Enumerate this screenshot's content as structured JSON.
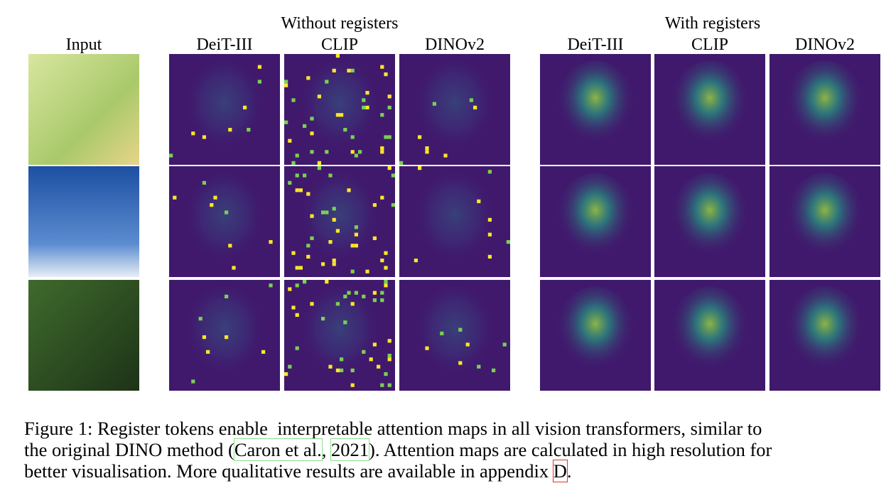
{
  "figure": {
    "input_label": "Input",
    "groups": [
      {
        "title": "Without registers",
        "columns": [
          "DeiT-III",
          "CLIP",
          "DINOv2"
        ]
      },
      {
        "title": "With registers",
        "columns": [
          "DeiT-III",
          "CLIP",
          "DINOv2"
        ]
      }
    ],
    "caption": {
      "lines": [
        [
          {
            "text": "Figure 1: Register tokens enable  interpretable attention maps in all vision transformers, similar to"
          }
        ],
        [
          {
            "text": "the original DINO method ("
          },
          {
            "text": "Caron et al.",
            "box": "#8ee08e"
          },
          {
            "text": ", "
          },
          {
            "text": "2021",
            "box": "#8ee08e"
          },
          {
            "text": "). Attention maps are calculated in high resolution for"
          }
        ],
        [
          {
            "text": "better visualisation. More qualitative results are available in appendix "
          },
          {
            "text": "D",
            "box": "#e03030"
          },
          {
            "text": "."
          }
        ]
      ]
    }
  }
}
